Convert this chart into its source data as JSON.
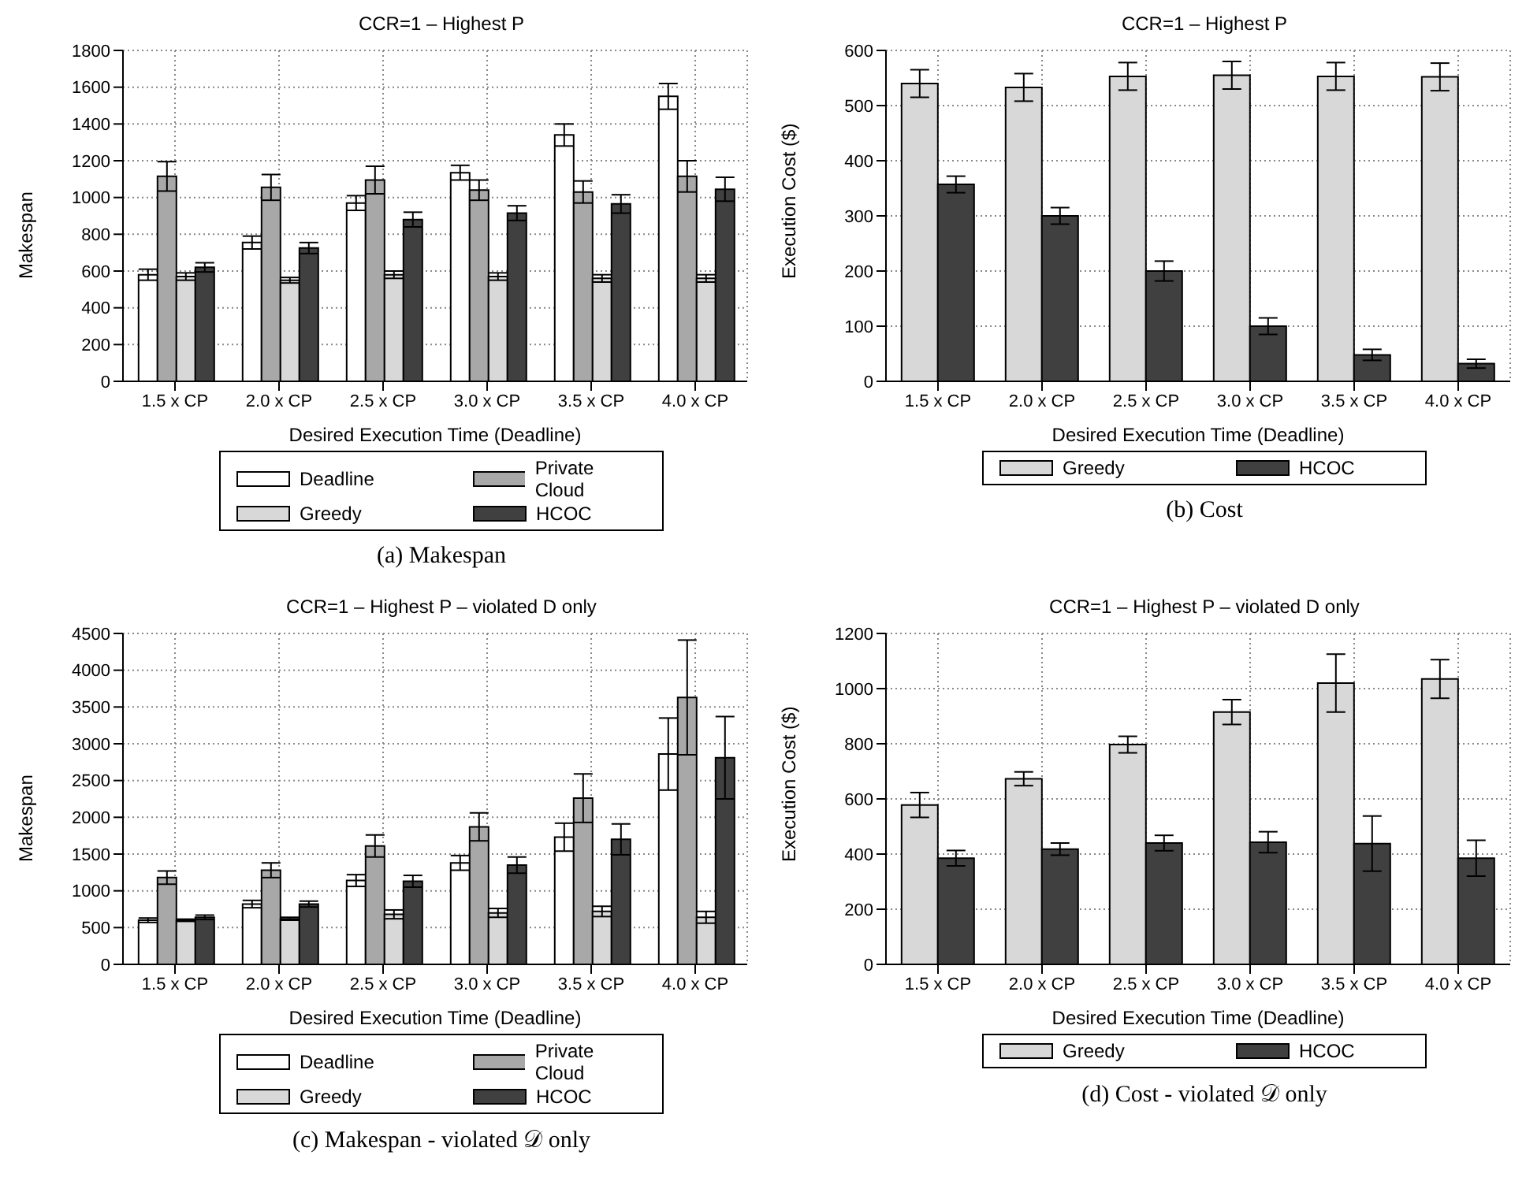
{
  "chart_data": [
    {
      "type": "bar",
      "title": "CCR=1 – Highest P",
      "xlabel": "Desired Execution Time (Deadline)",
      "ylabel": "Makespan",
      "categories": [
        "1.5 x CP",
        "2.0 x CP",
        "2.5 x CP",
        "3.0 x CP",
        "3.5 x CP",
        "4.0 x CP"
      ],
      "ylim": [
        0,
        1800
      ],
      "yticks": [
        0,
        200,
        400,
        600,
        800,
        1000,
        1200,
        1400,
        1600,
        1800
      ],
      "grid": true,
      "legend": "bottom",
      "annotations": [
        "(a) Makespan"
      ],
      "series": [
        {
          "name": "Deadline",
          "color": "#ffffff",
          "values": [
            580,
            755,
            970,
            1135,
            1340,
            1550
          ],
          "errors": [
            30,
            35,
            40,
            40,
            60,
            70
          ]
        },
        {
          "name": "Private Cloud",
          "color": "#a8a8a8",
          "values": [
            1115,
            1055,
            1095,
            1040,
            1030,
            1115
          ],
          "errors": [
            80,
            70,
            75,
            55,
            60,
            85
          ]
        },
        {
          "name": "Greedy",
          "color": "#d8d8d8",
          "values": [
            570,
            550,
            580,
            570,
            560,
            560
          ],
          "errors": [
            20,
            15,
            20,
            20,
            20,
            20
          ]
        },
        {
          "name": "HCOC",
          "color": "#404040",
          "values": [
            620,
            725,
            880,
            915,
            965,
            1045
          ],
          "errors": [
            25,
            30,
            40,
            40,
            50,
            65
          ]
        }
      ]
    },
    {
      "type": "bar",
      "title": "CCR=1 – Highest P",
      "xlabel": "Desired Execution Time (Deadline)",
      "ylabel": "Execution Cost ($)",
      "categories": [
        "1.5 x CP",
        "2.0 x CP",
        "2.5 x CP",
        "3.0 x CP",
        "3.5 x CP",
        "4.0 x CP"
      ],
      "ylim": [
        0,
        600
      ],
      "yticks": [
        0,
        100,
        200,
        300,
        400,
        500,
        600
      ],
      "grid": true,
      "legend": "bottom",
      "annotations": [
        "(b) Cost"
      ],
      "series": [
        {
          "name": "Greedy",
          "color": "#d8d8d8",
          "values": [
            540,
            533,
            553,
            555,
            553,
            552
          ],
          "errors": [
            25,
            25,
            25,
            25,
            25,
            25
          ]
        },
        {
          "name": "HCOC",
          "color": "#404040",
          "values": [
            357,
            300,
            200,
            100,
            48,
            32
          ],
          "errors": [
            15,
            15,
            18,
            15,
            10,
            8
          ]
        }
      ]
    },
    {
      "type": "bar",
      "title": "CCR=1 – Highest P – violated D only",
      "xlabel": "Desired Execution Time (Deadline)",
      "ylabel": "Makespan",
      "categories": [
        "1.5 x CP",
        "2.0 x CP",
        "2.5 x CP",
        "3.0 x CP",
        "3.5 x CP",
        "4.0 x CP"
      ],
      "ylim": [
        0,
        4500
      ],
      "yticks": [
        0,
        500,
        1000,
        1500,
        2000,
        2500,
        3000,
        3500,
        4000,
        4500
      ],
      "grid": true,
      "legend": "bottom",
      "annotations": [
        "(c) Makespan - violated 𝒟 only"
      ],
      "series": [
        {
          "name": "Deadline",
          "color": "#ffffff",
          "values": [
            600,
            820,
            1140,
            1380,
            1730,
            2860
          ],
          "errors": [
            30,
            50,
            80,
            100,
            190,
            490
          ]
        },
        {
          "name": "Private Cloud",
          "color": "#a8a8a8",
          "values": [
            1180,
            1280,
            1610,
            1870,
            2260,
            3630
          ],
          "errors": [
            90,
            100,
            150,
            190,
            330,
            780
          ]
        },
        {
          "name": "Greedy",
          "color": "#d8d8d8",
          "values": [
            600,
            620,
            680,
            700,
            720,
            640
          ],
          "errors": [
            15,
            20,
            60,
            60,
            70,
            80
          ]
        },
        {
          "name": "HCOC",
          "color": "#404040",
          "values": [
            640,
            820,
            1130,
            1350,
            1700,
            2810
          ],
          "errors": [
            30,
            40,
            80,
            110,
            210,
            560
          ]
        }
      ]
    },
    {
      "type": "bar",
      "title": "CCR=1 – Highest P – violated D only",
      "xlabel": "Desired Execution Time (Deadline)",
      "ylabel": "Execution Cost ($)",
      "categories": [
        "1.5 x CP",
        "2.0 x CP",
        "2.5 x CP",
        "3.0 x CP",
        "3.5 x CP",
        "4.0 x CP"
      ],
      "ylim": [
        0,
        1200
      ],
      "yticks": [
        0,
        200,
        400,
        600,
        800,
        1000,
        1200
      ],
      "grid": true,
      "legend": "bottom",
      "annotations": [
        "(d) Cost - violated 𝒟 only"
      ],
      "series": [
        {
          "name": "Greedy",
          "color": "#d8d8d8",
          "values": [
            578,
            673,
            797,
            915,
            1020,
            1035
          ],
          "errors": [
            45,
            25,
            30,
            45,
            105,
            70
          ]
        },
        {
          "name": "HCOC",
          "color": "#404040",
          "values": [
            385,
            418,
            440,
            443,
            438,
            385
          ],
          "errors": [
            28,
            22,
            28,
            38,
            100,
            65
          ]
        }
      ]
    }
  ]
}
